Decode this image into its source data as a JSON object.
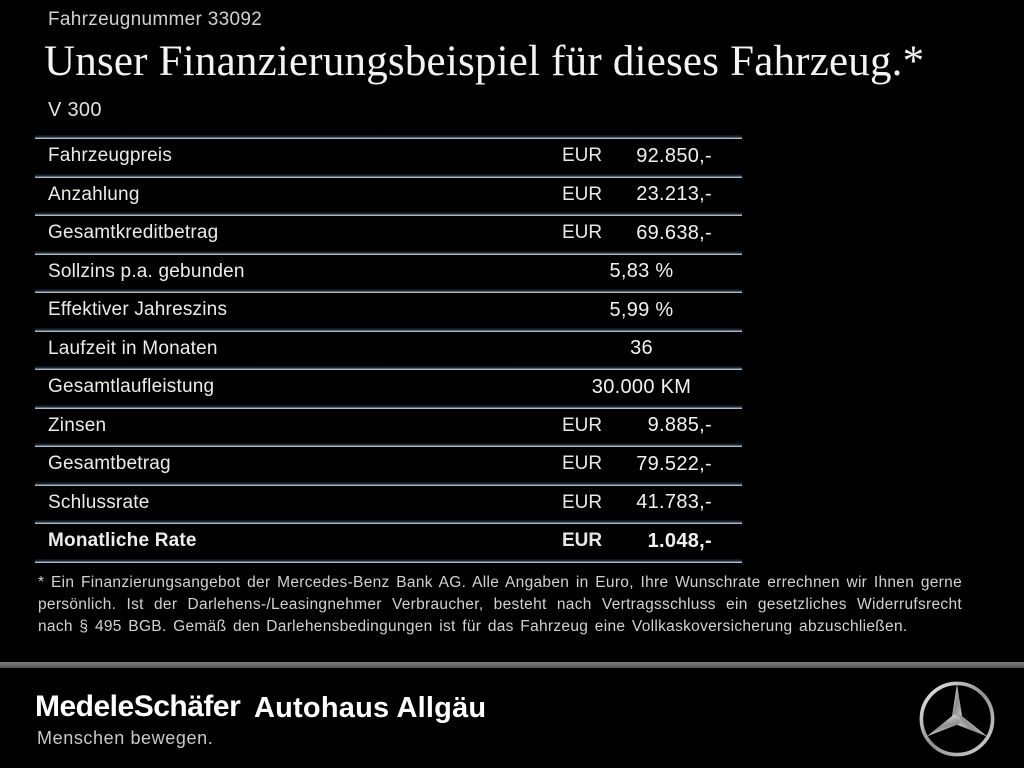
{
  "header": {
    "vehicle_number": "Fahrzeugnummer 33092",
    "title": "Unser Finanzierungsbeispiel für dieses Fahrzeug.*",
    "model": "V 300"
  },
  "table": {
    "rows": [
      {
        "label": "Fahrzeugpreis",
        "currency": "EUR",
        "value": "92.850,-",
        "bold": false
      },
      {
        "label": "Anzahlung",
        "currency": "EUR",
        "value": "23.213,-",
        "bold": false
      },
      {
        "label": "Gesamtkreditbetrag",
        "currency": "EUR",
        "value": "69.638,-",
        "bold": false
      },
      {
        "label": "Sollzins p.a. gebunden",
        "currency": "",
        "value": "5,83 %",
        "bold": false
      },
      {
        "label": "Effektiver Jahreszins",
        "currency": "",
        "value": "5,99 %",
        "bold": false
      },
      {
        "label": "Laufzeit in Monaten",
        "currency": "",
        "value": "36",
        "bold": false
      },
      {
        "label": "Gesamtlaufleistung",
        "currency": "",
        "value": "30.000 KM",
        "bold": false
      },
      {
        "label": "Zinsen",
        "currency": "EUR",
        "value": "9.885,-",
        "bold": false
      },
      {
        "label": "Gesamtbetrag",
        "currency": "EUR",
        "value": "79.522,-",
        "bold": false
      },
      {
        "label": "Schlussrate",
        "currency": "EUR",
        "value": "41.783,-",
        "bold": false
      },
      {
        "label": "Monatliche Rate",
        "currency": "EUR",
        "value": "1.048,-",
        "bold": true
      }
    ]
  },
  "footnote": {
    "text": "* Ein Finanzierungsangebot der Mercedes-Benz Bank AG. Alle Angaben in Euro, Ihre Wunschrate errechnen wir Ihnen gerne persönlich. Ist der Darlehens-/Leasingnehmer Verbraucher, besteht nach Vertragsschluss ein gesetzliches Widerrufsrecht nach § 495 BGB. Gemäß den Darlehensbedingungen ist für das Fahrzeug eine Vollkaskoversicherung abzuschließen."
  },
  "footer": {
    "dealer_name": "MedeleSchäfer",
    "dealer_tagline": "Menschen bewegen.",
    "dealer_name_2": "Autohaus Allgäu",
    "brand_icon": "mercedes-benz-star"
  },
  "colors": {
    "background": "#000000",
    "separator_line": "#cdd8e0",
    "divider_bar": "#6a6a6a",
    "text_primary": "#f2f2f2",
    "text_secondary": "#d2d2d2"
  }
}
